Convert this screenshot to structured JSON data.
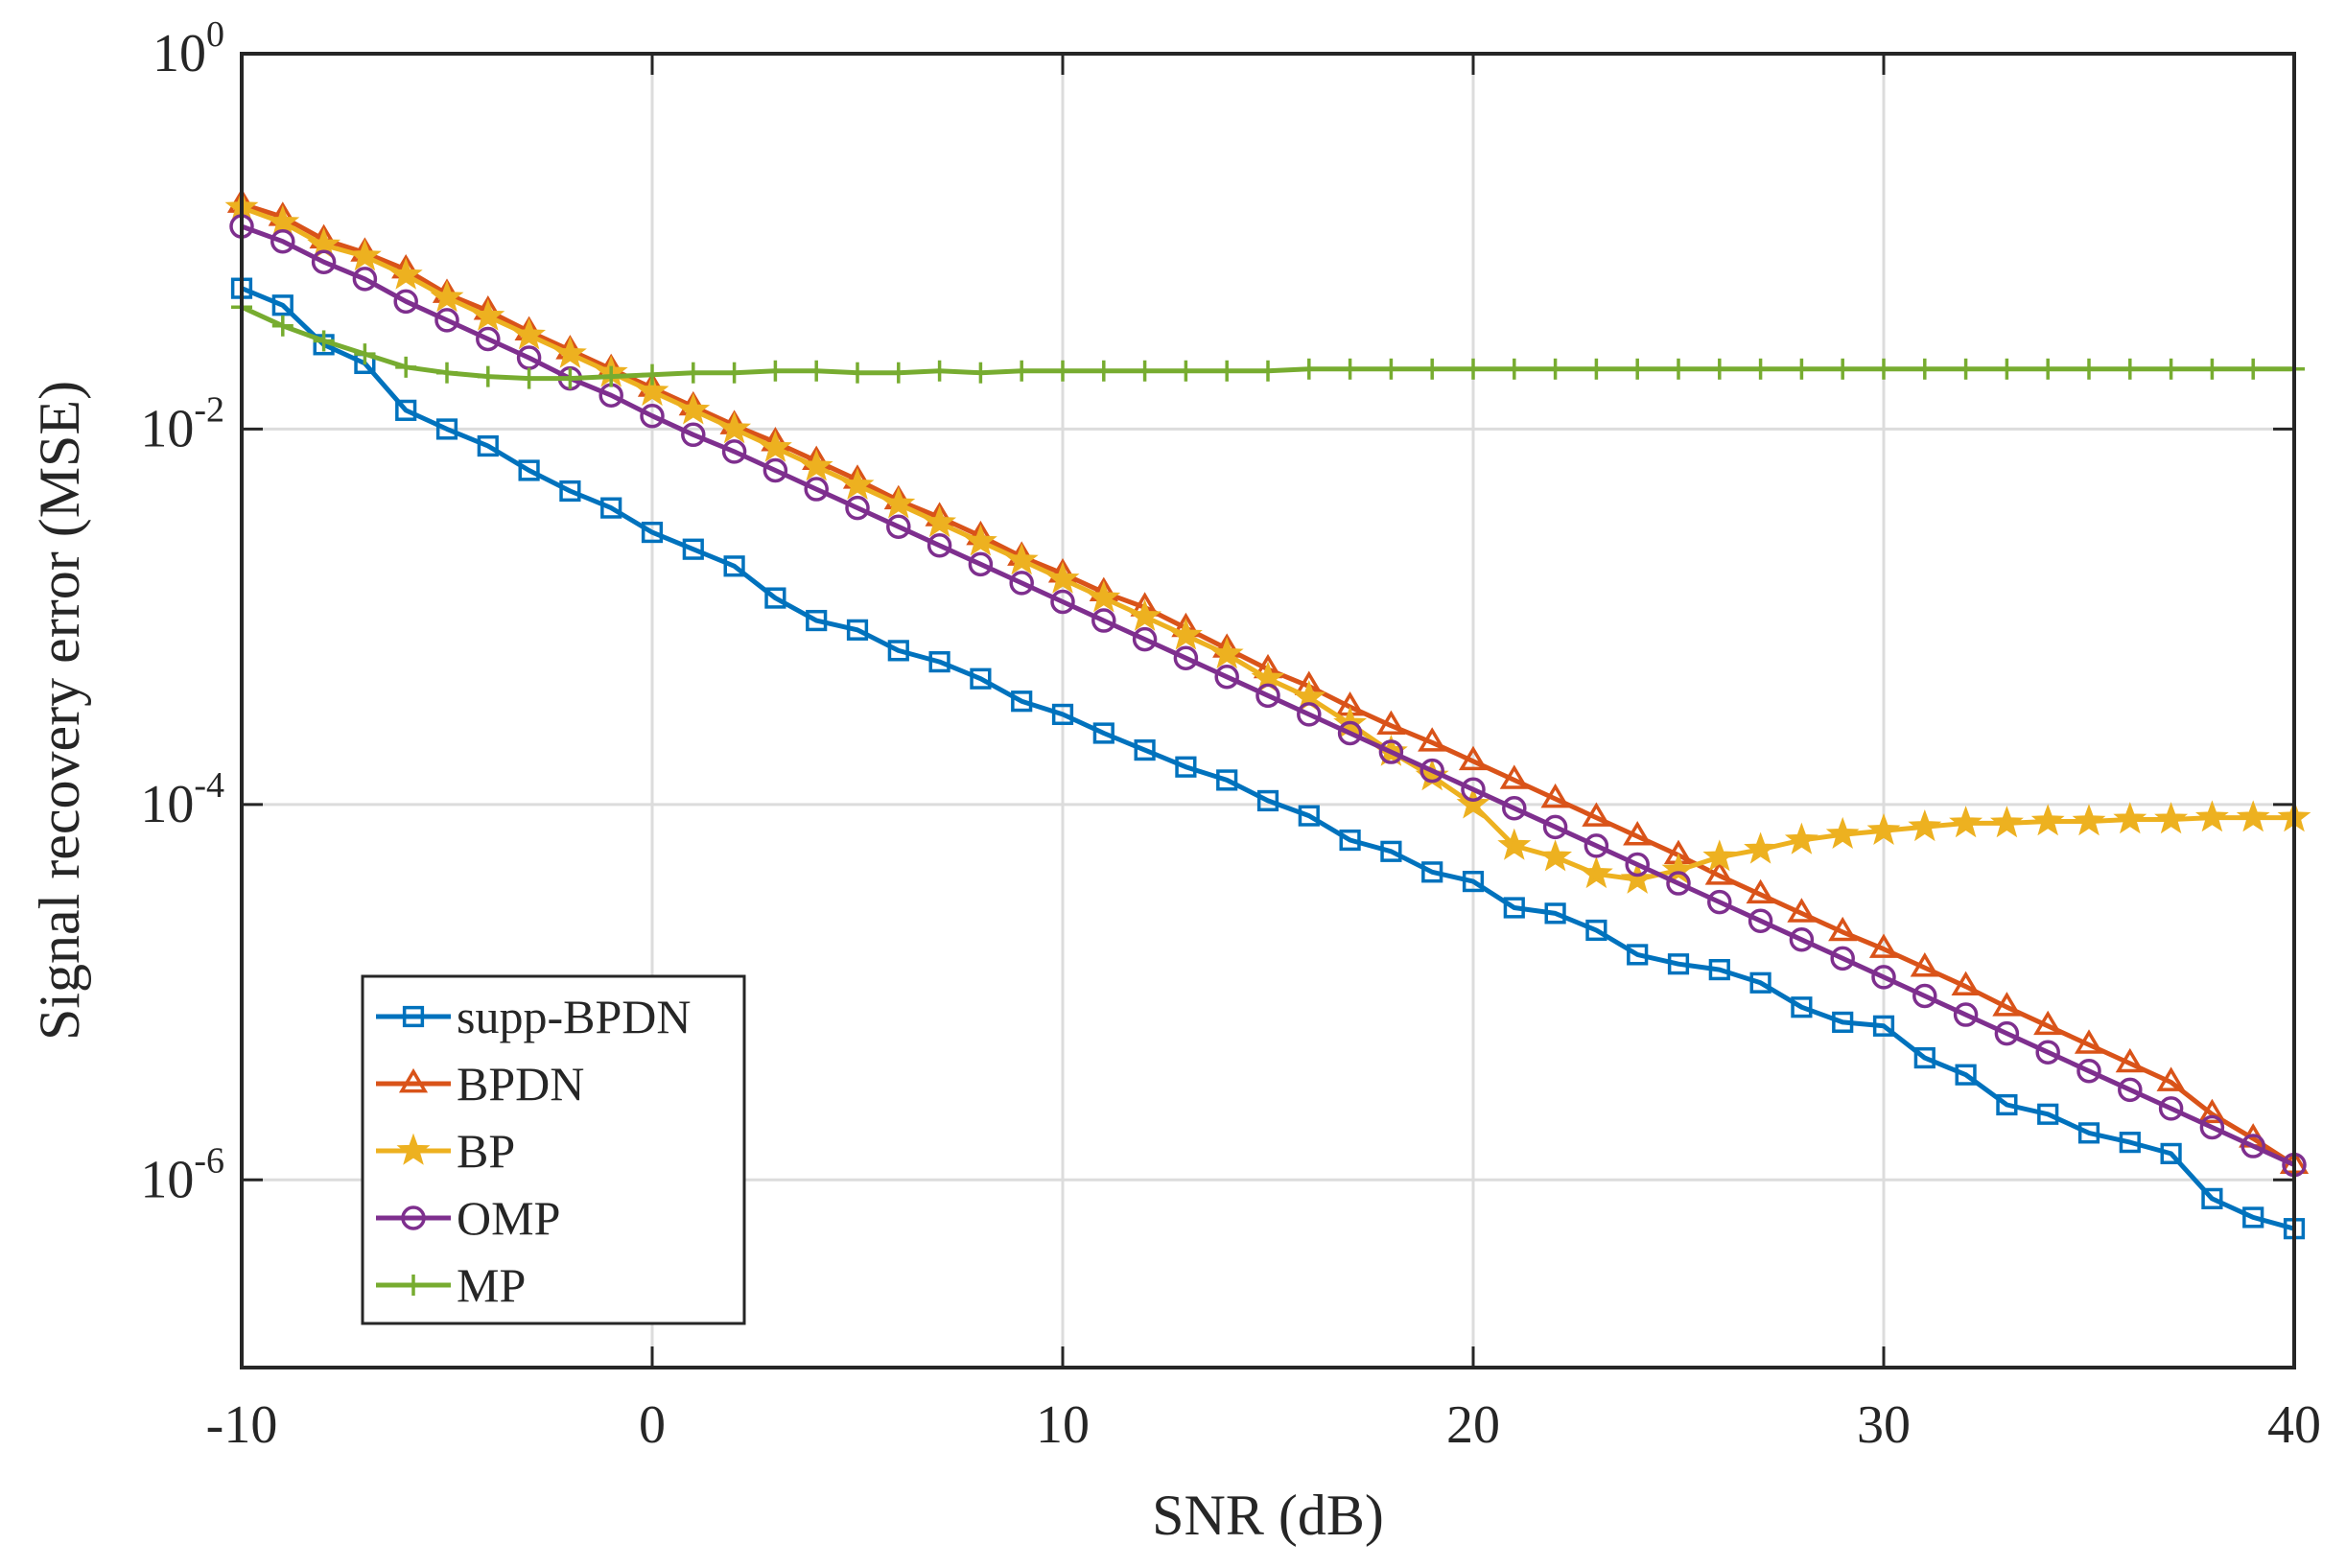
{
  "chart_data": {
    "type": "line",
    "title": "",
    "xlabel": "SNR (dB)",
    "ylabel": "Signal recovery error (MSE)",
    "xlim": [
      -10,
      40
    ],
    "ylim_log10": [
      -7,
      0
    ],
    "yscale": "log",
    "grid": true,
    "legend_position": "bottom-left",
    "x_ticks": [
      -10,
      0,
      10,
      20,
      30,
      40
    ],
    "x_tick_labels": [
      "-10",
      "0",
      "10",
      "20",
      "30",
      "40"
    ],
    "y_ticks_log10": [
      0,
      -2,
      -4,
      -6
    ],
    "y_tick_labels": [
      {
        "base": "10",
        "exp": "0"
      },
      {
        "base": "10",
        "exp": "-2"
      },
      {
        "base": "10",
        "exp": "-4"
      },
      {
        "base": "10",
        "exp": "-6"
      }
    ],
    "x": [
      -10,
      -9,
      -8,
      -7,
      -6,
      -5,
      -4,
      -3,
      -2,
      -1,
      0,
      1,
      2,
      3,
      4,
      5,
      6,
      7,
      8,
      9,
      10,
      11,
      12,
      13,
      14,
      15,
      16,
      17,
      18,
      19,
      20,
      21,
      22,
      23,
      24,
      25,
      26,
      27,
      28,
      29,
      30,
      31,
      32,
      33,
      34,
      35,
      36,
      37,
      38,
      39,
      40
    ],
    "series": [
      {
        "name": "supp-BPDN",
        "color": "#0072BD",
        "marker": "square",
        "values_log10": [
          -1.25,
          -1.34,
          -1.55,
          -1.65,
          -1.9,
          -2.0,
          -2.09,
          -2.22,
          -2.33,
          -2.42,
          -2.55,
          -2.64,
          -2.73,
          -2.9,
          -3.02,
          -3.07,
          -3.18,
          -3.24,
          -3.33,
          -3.45,
          -3.52,
          -3.62,
          -3.71,
          -3.8,
          -3.87,
          -3.98,
          -4.06,
          -4.19,
          -4.25,
          -4.36,
          -4.41,
          -4.55,
          -4.58,
          -4.67,
          -4.8,
          -4.85,
          -4.88,
          -4.95,
          -5.08,
          -5.16,
          -5.18,
          -5.35,
          -5.44,
          -5.6,
          -5.65,
          -5.75,
          -5.8,
          -5.86,
          -6.1,
          -6.2,
          -6.26
        ]
      },
      {
        "name": "BPDN",
        "color": "#D95319",
        "marker": "triangle",
        "values_log10": [
          -0.8,
          -0.87,
          -0.99,
          -1.06,
          -1.15,
          -1.28,
          -1.37,
          -1.48,
          -1.58,
          -1.68,
          -1.78,
          -1.88,
          -1.98,
          -2.07,
          -2.17,
          -2.27,
          -2.38,
          -2.47,
          -2.57,
          -2.68,
          -2.77,
          -2.87,
          -2.95,
          -3.06,
          -3.17,
          -3.28,
          -3.37,
          -3.48,
          -3.58,
          -3.67,
          -3.77,
          -3.87,
          -3.97,
          -4.07,
          -4.17,
          -4.27,
          -4.38,
          -4.48,
          -4.58,
          -4.68,
          -4.77,
          -4.87,
          -4.97,
          -5.08,
          -5.18,
          -5.28,
          -5.38,
          -5.48,
          -5.65,
          -5.78,
          -5.92
        ]
      },
      {
        "name": "BP",
        "color": "#EDB120",
        "marker": "star",
        "values_log10": [
          -0.82,
          -0.9,
          -1.02,
          -1.08,
          -1.18,
          -1.3,
          -1.4,
          -1.5,
          -1.6,
          -1.7,
          -1.8,
          -1.9,
          -2.0,
          -2.1,
          -2.2,
          -2.3,
          -2.4,
          -2.5,
          -2.6,
          -2.7,
          -2.8,
          -2.9,
          -3.0,
          -3.1,
          -3.2,
          -3.33,
          -3.43,
          -3.57,
          -3.72,
          -3.85,
          -4.0,
          -4.22,
          -4.28,
          -4.37,
          -4.4,
          -4.35,
          -4.28,
          -4.24,
          -4.19,
          -4.16,
          -4.14,
          -4.12,
          -4.1,
          -4.1,
          -4.09,
          -4.09,
          -4.08,
          -4.08,
          -4.07,
          -4.07,
          -4.07
        ]
      },
      {
        "name": "OMP",
        "color": "#7E2F8E",
        "marker": "circle",
        "values_log10": [
          -0.92,
          -1.0,
          -1.11,
          -1.2,
          -1.32,
          -1.42,
          -1.52,
          -1.62,
          -1.73,
          -1.82,
          -1.93,
          -2.03,
          -2.12,
          -2.22,
          -2.32,
          -2.42,
          -2.52,
          -2.62,
          -2.72,
          -2.82,
          -2.92,
          -3.02,
          -3.12,
          -3.22,
          -3.32,
          -3.42,
          -3.52,
          -3.62,
          -3.72,
          -3.82,
          -3.92,
          -4.02,
          -4.12,
          -4.22,
          -4.32,
          -4.42,
          -4.52,
          -4.62,
          -4.72,
          -4.82,
          -4.92,
          -5.02,
          -5.12,
          -5.22,
          -5.32,
          -5.42,
          -5.52,
          -5.62,
          -5.72,
          -5.82,
          -5.92
        ]
      },
      {
        "name": "MP",
        "color": "#77AC30",
        "marker": "plus",
        "values_log10": [
          -1.35,
          -1.45,
          -1.53,
          -1.6,
          -1.67,
          -1.7,
          -1.72,
          -1.73,
          -1.73,
          -1.72,
          -1.71,
          -1.7,
          -1.7,
          -1.69,
          -1.69,
          -1.7,
          -1.7,
          -1.69,
          -1.7,
          -1.69,
          -1.69,
          -1.69,
          -1.69,
          -1.69,
          -1.69,
          -1.69,
          -1.68,
          -1.68,
          -1.68,
          -1.68,
          -1.68,
          -1.68,
          -1.68,
          -1.68,
          -1.68,
          -1.68,
          -1.68,
          -1.68,
          -1.68,
          -1.68,
          -1.68,
          -1.68,
          -1.68,
          -1.68,
          -1.68,
          -1.68,
          -1.68,
          -1.68,
          -1.68,
          -1.68,
          -1.68
        ]
      }
    ]
  }
}
